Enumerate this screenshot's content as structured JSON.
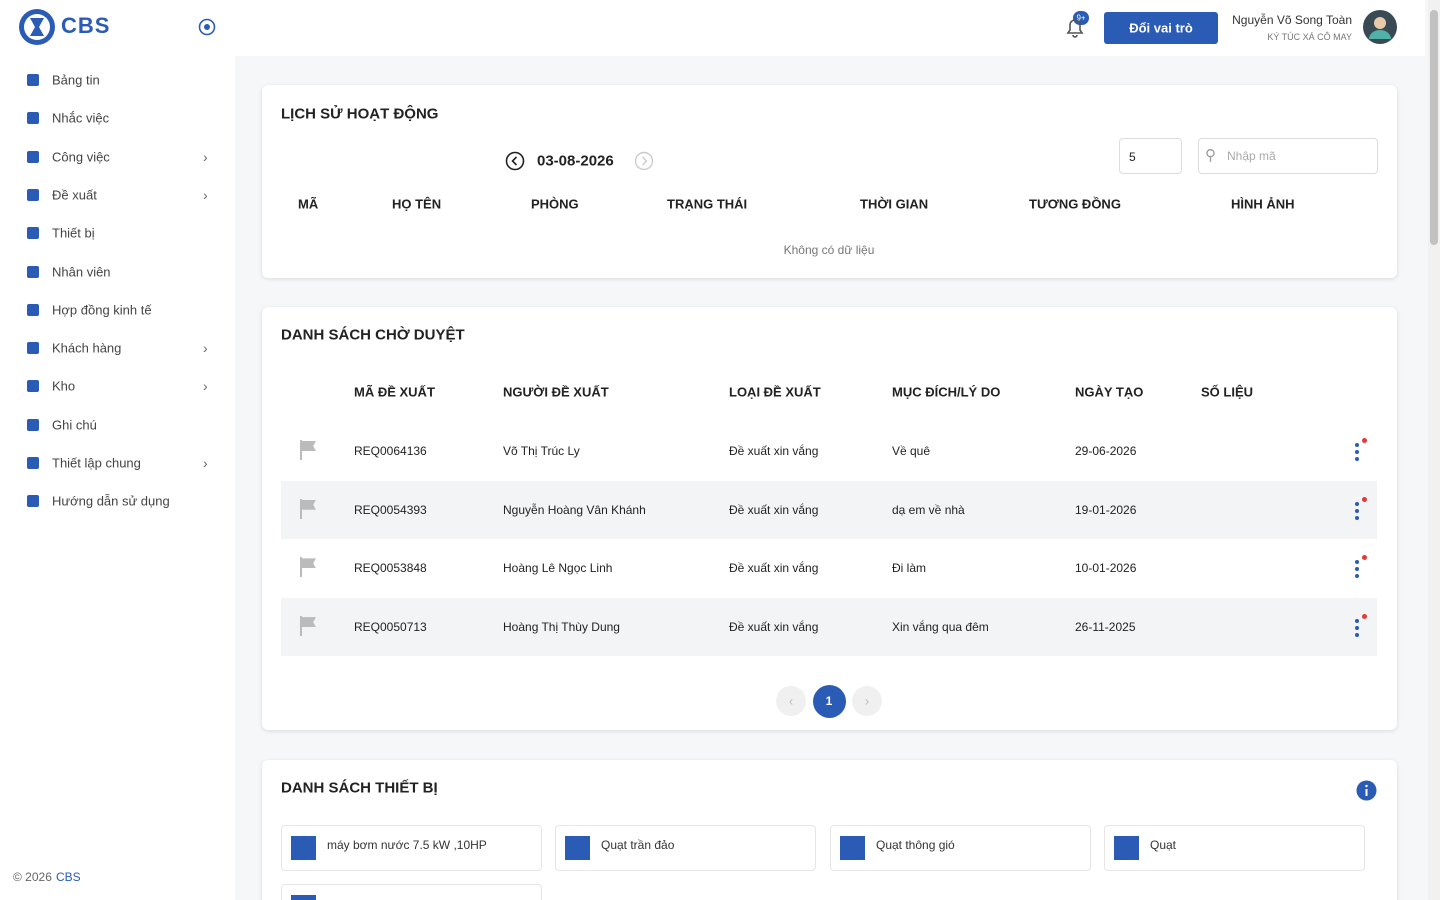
{
  "sidebar": {
    "brand": "CBS",
    "menu": [
      {
        "label": "Bảng tin",
        "submenu": false
      },
      {
        "label": "Nhắc việc",
        "submenu": false
      },
      {
        "label": "Công việc",
        "submenu": true
      },
      {
        "label": "Đề xuất",
        "submenu": true
      },
      {
        "label": "Thiết bị",
        "submenu": false
      },
      {
        "label": "Nhân viên",
        "submenu": false
      },
      {
        "label": "Hợp đồng kinh tế",
        "submenu": false
      },
      {
        "label": "Khách hàng",
        "submenu": true
      },
      {
        "label": "Kho",
        "submenu": true
      },
      {
        "label": "Ghi chú",
        "submenu": false
      },
      {
        "label": "Thiết lập chung",
        "submenu": true
      },
      {
        "label": "Hướng dẫn sử dụng",
        "submenu": false
      }
    ],
    "footer_prefix": "© 2026",
    "footer_brand": "CBS"
  },
  "header": {
    "badge": "9+",
    "role_button": "Đổi vai trò",
    "user_name": "Nguyễn Võ Song Toàn",
    "user_org": "KÝ TÚC XÁ CÔ MAY"
  },
  "activity": {
    "title": "LỊCH SỬ HOẠT ĐỘNG",
    "date": "03-08-2026",
    "page_size": 5,
    "search_placeholder": "Nhập mã",
    "columns": [
      "MÃ",
      "HỌ TÊN",
      "PHÒNG",
      "TRẠNG THÁI",
      "THỜI GIAN",
      "TƯƠNG ĐỒNG",
      "HÌNH ẢNH"
    ],
    "empty": "Không có dữ liệu"
  },
  "pending": {
    "title": "DANH SÁCH CHỜ DUYỆT",
    "columns": [
      "MÃ ĐỀ XUẤT",
      "NGƯỜI ĐỀ XUẤT",
      "LOẠI ĐỀ XUẤT",
      "MỤC ĐÍCH/LÝ DO",
      "NGÀY TẠO",
      "SỐ LIỆU"
    ],
    "rows": [
      [
        "REQ0064136",
        "Võ Thị Trúc Ly",
        "Đề xuất xin vắng",
        "Về quê",
        "29-06-2026"
      ],
      [
        "REQ0054393",
        "Nguyễn Hoàng Vân Khánh",
        "Đề xuất xin vắng",
        "dạ em về nhà",
        "19-01-2026"
      ],
      [
        "REQ0053848",
        "Hoàng Lê Ngọc Linh",
        "Đề xuất xin vắng",
        "Đi làm",
        "10-01-2026"
      ],
      [
        "REQ0050713",
        "Hoàng Thị Thùy Dung",
        "Đề xuất xin vắng",
        "Xin vắng qua đêm",
        "26-11-2025"
      ]
    ],
    "page": 1
  },
  "devices": {
    "title": "DANH SÁCH THIẾT BỊ",
    "items": [
      "máy bơm nước 7.5 kW ,10HP",
      "Quạt trần đảo",
      "Quạt thông gió",
      "Quạt"
    ]
  }
}
